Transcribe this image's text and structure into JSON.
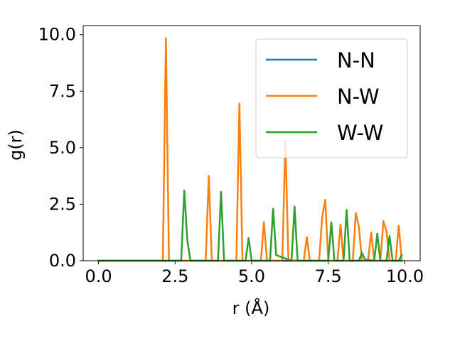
{
  "chart_data": {
    "type": "line",
    "xlabel": "r (Å)",
    "ylabel": "g(r)",
    "xlim": [
      -0.5,
      10.5
    ],
    "ylim": [
      0.0,
      10.4
    ],
    "xticks": [
      0.0,
      2.5,
      5.0,
      7.5,
      10.0
    ],
    "xtick_labels": [
      "0.0",
      "2.5",
      "5.0",
      "7.5",
      "10.0"
    ],
    "yticks": [
      0.0,
      2.5,
      5.0,
      7.5,
      10.0
    ],
    "ytick_labels": [
      "0.0",
      "2.5",
      "5.0",
      "7.5",
      "10.0"
    ],
    "grid": false,
    "legend_position": "top-right",
    "series": [
      {
        "name": "N-N",
        "color": "#1f77b4",
        "x": [
          0.0,
          9.9
        ],
        "y": [
          0.0,
          0.0
        ]
      },
      {
        "name": "N-W",
        "color": "#ff7f0e",
        "x": [
          0.0,
          2.1,
          2.2,
          2.3,
          3.5,
          3.6,
          3.7,
          4.5,
          4.6,
          4.7,
          5.3,
          5.4,
          5.5,
          6.0,
          6.1,
          6.2,
          6.7,
          6.8,
          6.9,
          7.2,
          7.3,
          7.4,
          7.5,
          7.8,
          7.9,
          8.0,
          8.3,
          8.4,
          8.5,
          8.6,
          8.8,
          8.9,
          9.0,
          9.2,
          9.3,
          9.4,
          9.5,
          9.7,
          9.8,
          9.9
        ],
        "y": [
          0.0,
          0.0,
          9.85,
          0.0,
          0.0,
          3.75,
          0.0,
          0.0,
          6.95,
          0.0,
          0.0,
          1.7,
          0.0,
          0.0,
          5.3,
          0.0,
          0.0,
          1.05,
          0.0,
          0.0,
          1.9,
          2.7,
          0.0,
          0.0,
          1.6,
          0.0,
          0.0,
          2.1,
          1.5,
          0.0,
          0.0,
          1.25,
          0.0,
          0.0,
          1.75,
          1.3,
          0.0,
          0.0,
          1.55,
          0.0
        ]
      },
      {
        "name": "W-W",
        "color": "#2ca02c",
        "x": [
          0.0,
          2.7,
          2.8,
          2.9,
          3.0,
          3.9,
          4.0,
          4.1,
          4.8,
          4.9,
          5.0,
          5.6,
          5.7,
          5.8,
          6.3,
          6.4,
          6.5,
          7.5,
          7.6,
          7.7,
          8.0,
          8.1,
          8.2,
          8.5,
          8.6,
          8.7,
          9.0,
          9.1,
          9.2,
          9.4,
          9.5,
          9.6,
          9.8,
          9.9
        ],
        "y": [
          0.0,
          0.0,
          3.1,
          0.9,
          0.0,
          0.0,
          3.05,
          0.0,
          0.0,
          1.0,
          0.0,
          0.0,
          2.3,
          0.25,
          0.0,
          2.4,
          0.0,
          0.0,
          1.7,
          0.0,
          0.0,
          2.25,
          0.0,
          0.0,
          0.35,
          0.05,
          0.0,
          1.2,
          0.0,
          0.0,
          1.1,
          0.0,
          0.0,
          0.25
        ]
      }
    ]
  }
}
